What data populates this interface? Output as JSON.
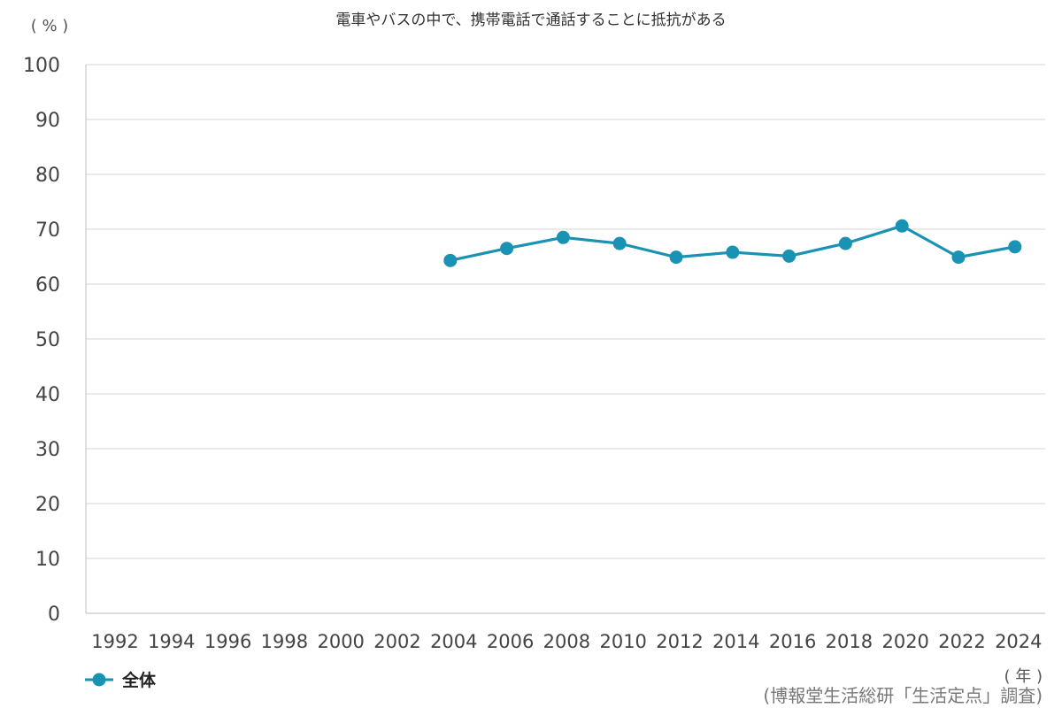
{
  "chart_data": {
    "type": "line",
    "title": "電車やバスの中で、携帯電話で通話することに抵抗がある",
    "y_unit_label": "( % )",
    "x_unit_label": "( 年 )",
    "source": "(博報堂生活総研「生活定点」調査)",
    "categories": [
      "1992",
      "1994",
      "1996",
      "1998",
      "2000",
      "2002",
      "2004",
      "2006",
      "2008",
      "2010",
      "2012",
      "2014",
      "2016",
      "2018",
      "2020",
      "2022",
      "2024"
    ],
    "y_ticks": [
      "0",
      "10",
      "20",
      "30",
      "40",
      "50",
      "60",
      "70",
      "80",
      "90",
      "100"
    ],
    "ylim": [
      0,
      100
    ],
    "grid": true,
    "legend_position": "bottom-left",
    "series": [
      {
        "name": "全体",
        "color": "#1a92b4",
        "values": [
          null,
          null,
          null,
          null,
          null,
          null,
          64.3,
          66.5,
          68.5,
          67.4,
          64.9,
          65.8,
          65.1,
          67.4,
          70.6,
          64.9,
          66.8
        ]
      }
    ]
  }
}
